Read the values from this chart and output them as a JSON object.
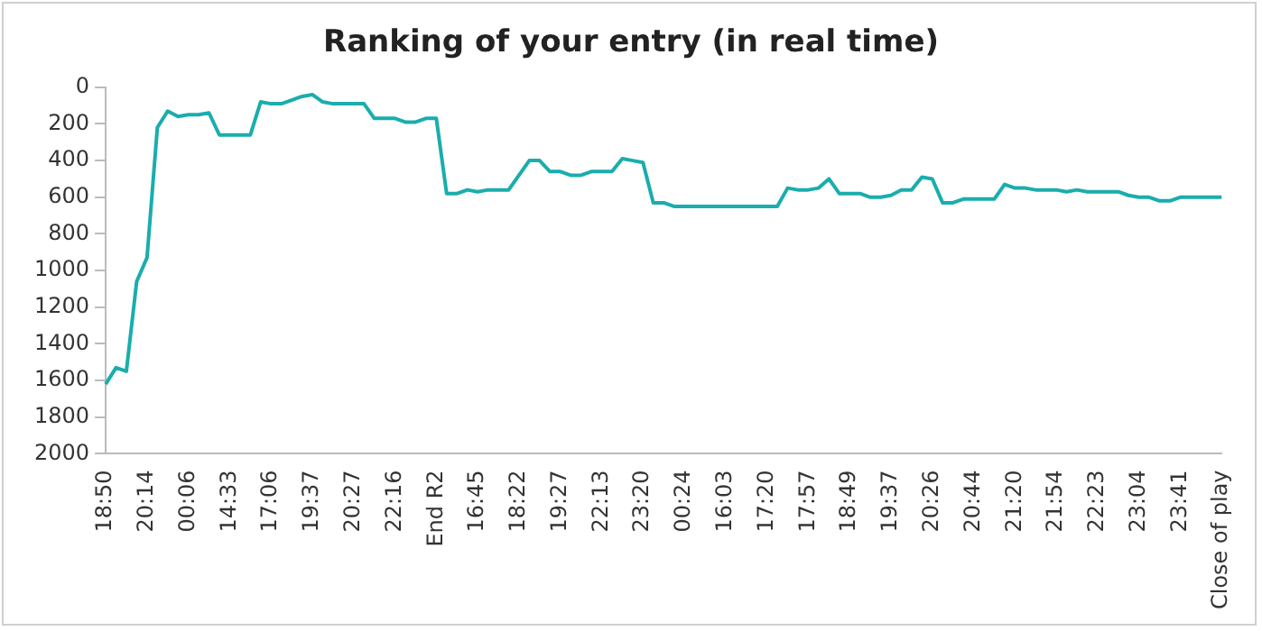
{
  "chart_data": {
    "type": "line",
    "title": "Ranking of your entry (in real time)",
    "categories": [
      "18:50",
      null,
      null,
      null,
      "20:14",
      null,
      null,
      null,
      "00:06",
      null,
      null,
      null,
      "14:33",
      null,
      null,
      null,
      "17:06",
      null,
      null,
      null,
      "19:37",
      null,
      null,
      null,
      "20:27",
      null,
      null,
      null,
      "22:16",
      null,
      null,
      null,
      "End R2",
      null,
      null,
      null,
      "16:45",
      null,
      null,
      null,
      "18:22",
      null,
      null,
      null,
      "19:27",
      null,
      null,
      null,
      "22:13",
      null,
      null,
      null,
      "23:20",
      null,
      null,
      null,
      "00:24",
      null,
      null,
      null,
      "16:03",
      null,
      null,
      null,
      "17:20",
      null,
      null,
      null,
      "17:57",
      null,
      null,
      null,
      "18:49",
      null,
      null,
      null,
      "19:37",
      null,
      null,
      null,
      "20:26",
      null,
      null,
      null,
      "20:44",
      null,
      null,
      null,
      "21:20",
      null,
      null,
      null,
      "21:54",
      null,
      null,
      null,
      "22:23",
      null,
      null,
      null,
      "23:04",
      null,
      null,
      null,
      "23:41",
      null,
      null,
      null,
      "Close of play"
    ],
    "series": [
      {
        "color": "#1aadad",
        "values": [
          1620,
          1530,
          1550,
          1060,
          930,
          220,
          130,
          160,
          150,
          150,
          140,
          260,
          260,
          260,
          260,
          80,
          90,
          90,
          70,
          50,
          40,
          80,
          90,
          90,
          90,
          90,
          170,
          170,
          170,
          190,
          190,
          170,
          170,
          580,
          580,
          560,
          570,
          560,
          560,
          560,
          480,
          400,
          400,
          460,
          460,
          480,
          480,
          460,
          460,
          460,
          390,
          400,
          410,
          630,
          630,
          650,
          650,
          650,
          650,
          650,
          650,
          650,
          650,
          650,
          650,
          650,
          550,
          560,
          560,
          550,
          500,
          580,
          580,
          580,
          600,
          600,
          590,
          560,
          560,
          490,
          500,
          630,
          630,
          610,
          610,
          610,
          610,
          530,
          550,
          550,
          560,
          560,
          560,
          570,
          560,
          570,
          570,
          570,
          570,
          590,
          600,
          600,
          620,
          620,
          600,
          600,
          600,
          600,
          600
        ]
      }
    ],
    "ylim": [
      2000,
      0
    ],
    "yticks": [
      0,
      200,
      400,
      600,
      800,
      1000,
      1200,
      1400,
      1600,
      1800,
      2000
    ],
    "grid": false,
    "legend": false,
    "marker": "none",
    "line_style": "solid"
  }
}
